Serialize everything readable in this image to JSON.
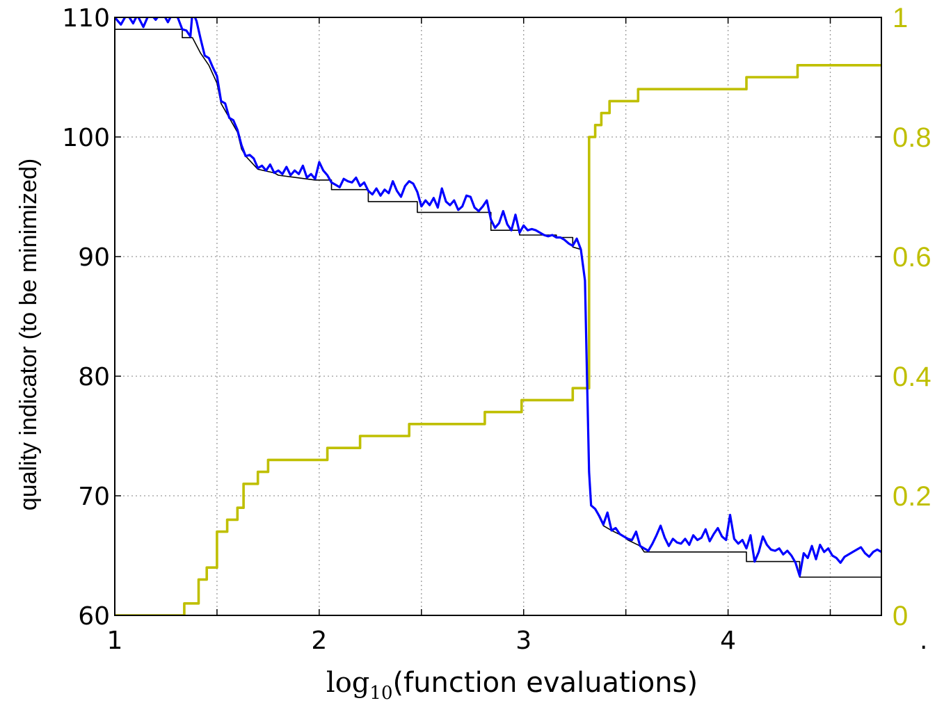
{
  "chart_data": {
    "type": "line",
    "xlabel": {
      "prefix": "log",
      "sub": "10",
      "suffix": "(function evaluations)"
    },
    "ylabel": "quality indicator (to be minimized)",
    "trailing_mark": ".",
    "xlim": [
      1,
      4.75
    ],
    "xticks": [
      {
        "v": 1,
        "label": "1"
      },
      {
        "v": 2,
        "label": "2"
      },
      {
        "v": 3,
        "label": "3"
      },
      {
        "v": 4,
        "label": "4"
      }
    ],
    "xgrid": [
      1.5,
      2,
      2.5,
      3,
      3.5,
      4,
      4.5
    ],
    "ylim_left": [
      60,
      110
    ],
    "yticks_left": [
      {
        "v": 60,
        "label": "60"
      },
      {
        "v": 70,
        "label": "70"
      },
      {
        "v": 80,
        "label": "80"
      },
      {
        "v": 90,
        "label": "90"
      },
      {
        "v": 100,
        "label": "100"
      },
      {
        "v": 110,
        "label": "110"
      }
    ],
    "ylim_right": [
      0,
      1
    ],
    "yticks_right": [
      {
        "v": 0,
        "label": "0"
      },
      {
        "v": 0.2,
        "label": "0.2"
      },
      {
        "v": 0.4,
        "label": "0.4"
      },
      {
        "v": 0.6,
        "label": "0.6"
      },
      {
        "v": 0.8,
        "label": "0.8"
      },
      {
        "v": 1,
        "label": "1"
      }
    ],
    "grid": true,
    "colors": {
      "current": "#0000ff",
      "best": "#000000",
      "fraction": "#bfbf00",
      "axis": "#000000",
      "right_ticks": "#bfbf00"
    },
    "series": [
      {
        "axis": "left",
        "style": "line",
        "color": "#0000ff",
        "points": [
          [
            1.0,
            110
          ],
          [
            1.03,
            109.4
          ],
          [
            1.06,
            110.3
          ],
          [
            1.09,
            109.5
          ],
          [
            1.11,
            110.2
          ],
          [
            1.14,
            109.2
          ],
          [
            1.17,
            110.4
          ],
          [
            1.2,
            109.8
          ],
          [
            1.23,
            110.5
          ],
          [
            1.26,
            109.6
          ],
          [
            1.29,
            110.6
          ],
          [
            1.31,
            109.9
          ],
          [
            1.33,
            109.0
          ],
          [
            1.35,
            108.9
          ],
          [
            1.37,
            108.4
          ],
          [
            1.38,
            110.5
          ],
          [
            1.4,
            109.7
          ],
          [
            1.42,
            108.2
          ],
          [
            1.44,
            106.8
          ],
          [
            1.46,
            106.6
          ],
          [
            1.48,
            105.8
          ],
          [
            1.5,
            105.1
          ],
          [
            1.52,
            103.0
          ],
          [
            1.54,
            102.8
          ],
          [
            1.56,
            101.6
          ],
          [
            1.58,
            101.4
          ],
          [
            1.6,
            100.6
          ],
          [
            1.62,
            99.3
          ],
          [
            1.64,
            98.4
          ],
          [
            1.66,
            98.5
          ],
          [
            1.68,
            98.2
          ],
          [
            1.7,
            97.4
          ],
          [
            1.72,
            97.6
          ],
          [
            1.74,
            97.2
          ],
          [
            1.76,
            97.7
          ],
          [
            1.78,
            97.0
          ],
          [
            1.8,
            97.2
          ],
          [
            1.82,
            96.9
          ],
          [
            1.84,
            97.5
          ],
          [
            1.86,
            96.8
          ],
          [
            1.88,
            97.2
          ],
          [
            1.9,
            96.9
          ],
          [
            1.92,
            97.6
          ],
          [
            1.94,
            96.6
          ],
          [
            1.96,
            96.9
          ],
          [
            1.98,
            96.5
          ],
          [
            2.0,
            97.9
          ],
          [
            2.02,
            97.2
          ],
          [
            2.04,
            96.8
          ],
          [
            2.06,
            96.2
          ],
          [
            2.08,
            96.0
          ],
          [
            2.1,
            95.8
          ],
          [
            2.12,
            96.5
          ],
          [
            2.14,
            96.3
          ],
          [
            2.16,
            96.2
          ],
          [
            2.18,
            96.6
          ],
          [
            2.2,
            95.9
          ],
          [
            2.22,
            96.2
          ],
          [
            2.24,
            95.5
          ],
          [
            2.26,
            95.2
          ],
          [
            2.28,
            95.7
          ],
          [
            2.3,
            95.1
          ],
          [
            2.32,
            95.6
          ],
          [
            2.34,
            95.3
          ],
          [
            2.36,
            96.3
          ],
          [
            2.38,
            95.5
          ],
          [
            2.4,
            95.0
          ],
          [
            2.42,
            95.9
          ],
          [
            2.44,
            96.3
          ],
          [
            2.46,
            96.1
          ],
          [
            2.48,
            95.4
          ],
          [
            2.5,
            94.2
          ],
          [
            2.52,
            94.7
          ],
          [
            2.54,
            94.3
          ],
          [
            2.56,
            94.9
          ],
          [
            2.58,
            94.1
          ],
          [
            2.6,
            95.7
          ],
          [
            2.62,
            94.6
          ],
          [
            2.64,
            94.3
          ],
          [
            2.66,
            94.7
          ],
          [
            2.68,
            93.9
          ],
          [
            2.7,
            94.2
          ],
          [
            2.72,
            95.1
          ],
          [
            2.74,
            95.0
          ],
          [
            2.76,
            94.1
          ],
          [
            2.78,
            93.8
          ],
          [
            2.8,
            94.2
          ],
          [
            2.82,
            94.7
          ],
          [
            2.84,
            93.1
          ],
          [
            2.86,
            92.4
          ],
          [
            2.88,
            92.8
          ],
          [
            2.9,
            93.8
          ],
          [
            2.92,
            92.7
          ],
          [
            2.94,
            92.2
          ],
          [
            2.96,
            93.5
          ],
          [
            2.98,
            92.0
          ],
          [
            3.0,
            92.6
          ],
          [
            3.02,
            92.2
          ],
          [
            3.04,
            92.3
          ],
          [
            3.06,
            92.2
          ],
          [
            3.08,
            92.0
          ],
          [
            3.1,
            91.8
          ],
          [
            3.12,
            91.7
          ],
          [
            3.14,
            91.8
          ],
          [
            3.16,
            91.6
          ],
          [
            3.18,
            91.6
          ],
          [
            3.2,
            91.4
          ],
          [
            3.22,
            91.1
          ],
          [
            3.24,
            90.9
          ],
          [
            3.26,
            91.5
          ],
          [
            3.28,
            90.6
          ],
          [
            3.3,
            88.0
          ],
          [
            3.31,
            80.0
          ],
          [
            3.32,
            72.0
          ],
          [
            3.33,
            69.2
          ],
          [
            3.35,
            68.9
          ],
          [
            3.37,
            68.3
          ],
          [
            3.39,
            67.6
          ],
          [
            3.41,
            68.6
          ],
          [
            3.43,
            67.1
          ],
          [
            3.45,
            67.3
          ],
          [
            3.47,
            66.8
          ],
          [
            3.49,
            66.6
          ],
          [
            3.51,
            66.4
          ],
          [
            3.53,
            66.3
          ],
          [
            3.55,
            67.0
          ],
          [
            3.57,
            65.8
          ],
          [
            3.59,
            65.6
          ],
          [
            3.61,
            65.4
          ],
          [
            3.63,
            66.0
          ],
          [
            3.65,
            66.7
          ],
          [
            3.67,
            67.5
          ],
          [
            3.69,
            66.5
          ],
          [
            3.71,
            65.8
          ],
          [
            3.73,
            66.4
          ],
          [
            3.75,
            66.1
          ],
          [
            3.77,
            66.0
          ],
          [
            3.79,
            66.4
          ],
          [
            3.81,
            65.9
          ],
          [
            3.83,
            66.7
          ],
          [
            3.85,
            66.3
          ],
          [
            3.87,
            66.5
          ],
          [
            3.89,
            67.2
          ],
          [
            3.91,
            66.2
          ],
          [
            3.93,
            66.8
          ],
          [
            3.95,
            67.3
          ],
          [
            3.97,
            66.6
          ],
          [
            3.99,
            66.3
          ],
          [
            4.01,
            68.4
          ],
          [
            4.03,
            66.4
          ],
          [
            4.05,
            66.0
          ],
          [
            4.07,
            66.3
          ],
          [
            4.09,
            65.6
          ],
          [
            4.11,
            66.7
          ],
          [
            4.13,
            64.5
          ],
          [
            4.15,
            65.3
          ],
          [
            4.17,
            66.6
          ],
          [
            4.19,
            65.9
          ],
          [
            4.21,
            65.5
          ],
          [
            4.23,
            65.4
          ],
          [
            4.25,
            65.6
          ],
          [
            4.27,
            65.1
          ],
          [
            4.29,
            65.4
          ],
          [
            4.31,
            65.0
          ],
          [
            4.33,
            64.4
          ],
          [
            4.35,
            63.3
          ],
          [
            4.37,
            65.2
          ],
          [
            4.39,
            64.8
          ],
          [
            4.41,
            65.8
          ],
          [
            4.43,
            64.7
          ],
          [
            4.45,
            65.9
          ],
          [
            4.47,
            65.3
          ],
          [
            4.49,
            65.6
          ],
          [
            4.51,
            65.0
          ],
          [
            4.53,
            64.8
          ],
          [
            4.55,
            64.4
          ],
          [
            4.57,
            64.9
          ],
          [
            4.59,
            65.1
          ],
          [
            4.61,
            65.3
          ],
          [
            4.63,
            65.5
          ],
          [
            4.65,
            65.7
          ],
          [
            4.67,
            65.2
          ],
          [
            4.69,
            64.9
          ],
          [
            4.71,
            65.3
          ],
          [
            4.73,
            65.5
          ],
          [
            4.75,
            65.3
          ]
        ]
      },
      {
        "axis": "left",
        "style": "steps",
        "color": "#000000",
        "points": [
          [
            1.0,
            109.0
          ],
          [
            1.33,
            109.0
          ],
          [
            1.33,
            108.3
          ],
          [
            1.38,
            108.3
          ],
          [
            1.42,
            107.0
          ],
          [
            1.46,
            106.0
          ],
          [
            1.5,
            104.5
          ],
          [
            1.52,
            102.8
          ],
          [
            1.56,
            101.6
          ],
          [
            1.6,
            100.4
          ],
          [
            1.62,
            99.0
          ],
          [
            1.64,
            98.4
          ],
          [
            1.7,
            97.3
          ],
          [
            1.78,
            97.0
          ],
          [
            1.8,
            96.8
          ],
          [
            1.98,
            96.4
          ],
          [
            2.06,
            96.4
          ],
          [
            2.06,
            95.6
          ],
          [
            2.24,
            95.6
          ],
          [
            2.24,
            94.6
          ],
          [
            2.48,
            94.6
          ],
          [
            2.48,
            93.7
          ],
          [
            2.84,
            93.7
          ],
          [
            2.84,
            92.2
          ],
          [
            2.98,
            92.2
          ],
          [
            2.98,
            91.8
          ],
          [
            3.16,
            91.8
          ],
          [
            3.16,
            91.6
          ],
          [
            3.24,
            91.6
          ],
          [
            3.24,
            90.8
          ],
          [
            3.28,
            90.6
          ],
          [
            3.3,
            88.0
          ],
          [
            3.31,
            80.0
          ],
          [
            3.32,
            72.0
          ],
          [
            3.33,
            69.2
          ],
          [
            3.35,
            68.9
          ],
          [
            3.39,
            67.5
          ],
          [
            3.43,
            67.1
          ],
          [
            3.49,
            66.6
          ],
          [
            3.51,
            66.3
          ],
          [
            3.57,
            65.8
          ],
          [
            3.59,
            65.3
          ],
          [
            4.09,
            65.3
          ],
          [
            4.09,
            64.5
          ],
          [
            4.35,
            64.5
          ],
          [
            4.35,
            63.2
          ],
          [
            4.75,
            63.2
          ]
        ]
      },
      {
        "axis": "right",
        "style": "line",
        "color": "#bfbf00",
        "points": [
          [
            1.0,
            0.0
          ],
          [
            1.34,
            0.0
          ],
          [
            1.34,
            0.02
          ],
          [
            1.41,
            0.02
          ],
          [
            1.41,
            0.06
          ],
          [
            1.45,
            0.06
          ],
          [
            1.45,
            0.08
          ],
          [
            1.5,
            0.08
          ],
          [
            1.5,
            0.14
          ],
          [
            1.55,
            0.14
          ],
          [
            1.55,
            0.16
          ],
          [
            1.6,
            0.16
          ],
          [
            1.6,
            0.18
          ],
          [
            1.63,
            0.18
          ],
          [
            1.63,
            0.22
          ],
          [
            1.7,
            0.22
          ],
          [
            1.7,
            0.24
          ],
          [
            1.75,
            0.24
          ],
          [
            1.75,
            0.26
          ],
          [
            2.04,
            0.26
          ],
          [
            2.04,
            0.28
          ],
          [
            2.2,
            0.28
          ],
          [
            2.2,
            0.3
          ],
          [
            2.44,
            0.3
          ],
          [
            2.44,
            0.32
          ],
          [
            2.81,
            0.32
          ],
          [
            2.81,
            0.34
          ],
          [
            2.99,
            0.34
          ],
          [
            2.99,
            0.36
          ],
          [
            3.24,
            0.36
          ],
          [
            3.24,
            0.38
          ],
          [
            3.32,
            0.38
          ],
          [
            3.32,
            0.8
          ],
          [
            3.35,
            0.8
          ],
          [
            3.35,
            0.82
          ],
          [
            3.38,
            0.82
          ],
          [
            3.38,
            0.84
          ],
          [
            3.42,
            0.84
          ],
          [
            3.42,
            0.86
          ],
          [
            3.56,
            0.86
          ],
          [
            3.56,
            0.88
          ],
          [
            4.09,
            0.88
          ],
          [
            4.09,
            0.9
          ],
          [
            4.34,
            0.9
          ],
          [
            4.34,
            0.92
          ],
          [
            4.75,
            0.92
          ]
        ]
      }
    ]
  }
}
